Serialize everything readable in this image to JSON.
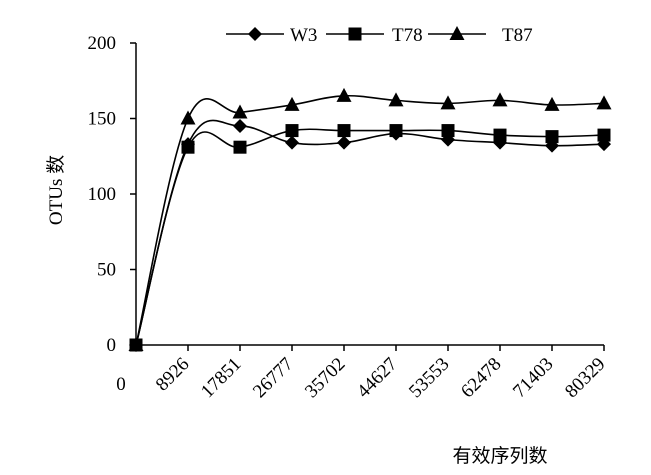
{
  "chart_data": {
    "type": "line",
    "xlabel": "有效序列数",
    "ylabel": "OTUs 数",
    "ylim": [
      0,
      200
    ],
    "yticks": [
      0,
      50,
      100,
      150,
      200
    ],
    "x_tick_labels": [
      "0",
      "8926",
      "17851",
      "26777",
      "35702",
      "44627",
      "53553",
      "62478",
      "71403",
      "80329"
    ],
    "x": [
      0,
      8926,
      17851,
      26777,
      35702,
      44627,
      53553,
      62478,
      71403,
      80329
    ],
    "legend_position": "top",
    "grid": false,
    "series": [
      {
        "name": "W3",
        "marker": "diamond",
        "values": [
          0,
          133,
          145,
          134,
          134,
          140,
          136,
          134,
          132,
          133
        ]
      },
      {
        "name": "T78",
        "marker": "square",
        "values": [
          0,
          131,
          131,
          142,
          142,
          142,
          142,
          139,
          138,
          139
        ]
      },
      {
        "name": "T87",
        "marker": "triangle",
        "values": [
          0,
          150,
          154,
          159,
          165,
          162,
          160,
          162,
          159,
          160
        ]
      }
    ]
  }
}
